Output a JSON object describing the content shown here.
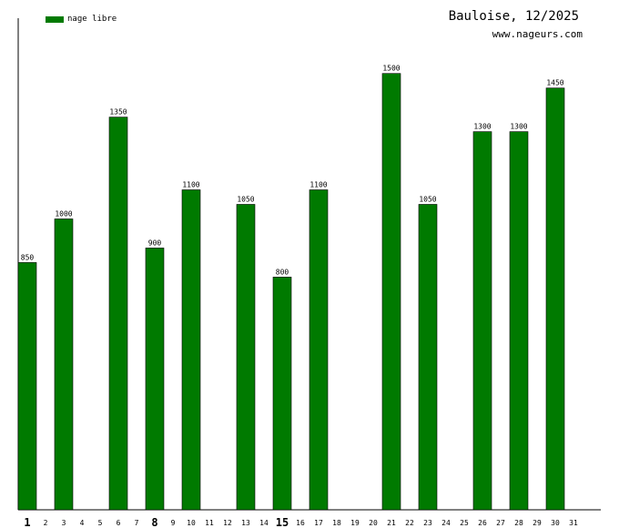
{
  "header": {
    "title": "Bauloise, 12/2025",
    "site": "www.nageurs.com"
  },
  "legend": {
    "label": "nage libre"
  },
  "colors": {
    "bar": "#007a00",
    "axis": "#000000"
  },
  "chart_data": {
    "type": "bar",
    "title": "Bauloise, 12/2025",
    "xlabel": "",
    "ylabel": "",
    "categories": [
      "1",
      "2",
      "3",
      "4",
      "5",
      "6",
      "7",
      "8",
      "9",
      "10",
      "11",
      "12",
      "13",
      "14",
      "15",
      "16",
      "17",
      "18",
      "19",
      "20",
      "21",
      "22",
      "23",
      "24",
      "25",
      "26",
      "27",
      "28",
      "29",
      "30",
      "31"
    ],
    "emphasized_ticks": [
      "1",
      "8",
      "15"
    ],
    "series": [
      {
        "name": "nage libre",
        "values": [
          850,
          null,
          1000,
          null,
          null,
          1350,
          null,
          900,
          null,
          1100,
          null,
          null,
          1050,
          null,
          800,
          null,
          1100,
          null,
          null,
          null,
          1500,
          null,
          1050,
          null,
          null,
          1300,
          null,
          1300,
          null,
          1450,
          null
        ]
      }
    ],
    "ylim": [
      0,
      1690
    ],
    "grid": false,
    "legend_position": "top-left"
  }
}
